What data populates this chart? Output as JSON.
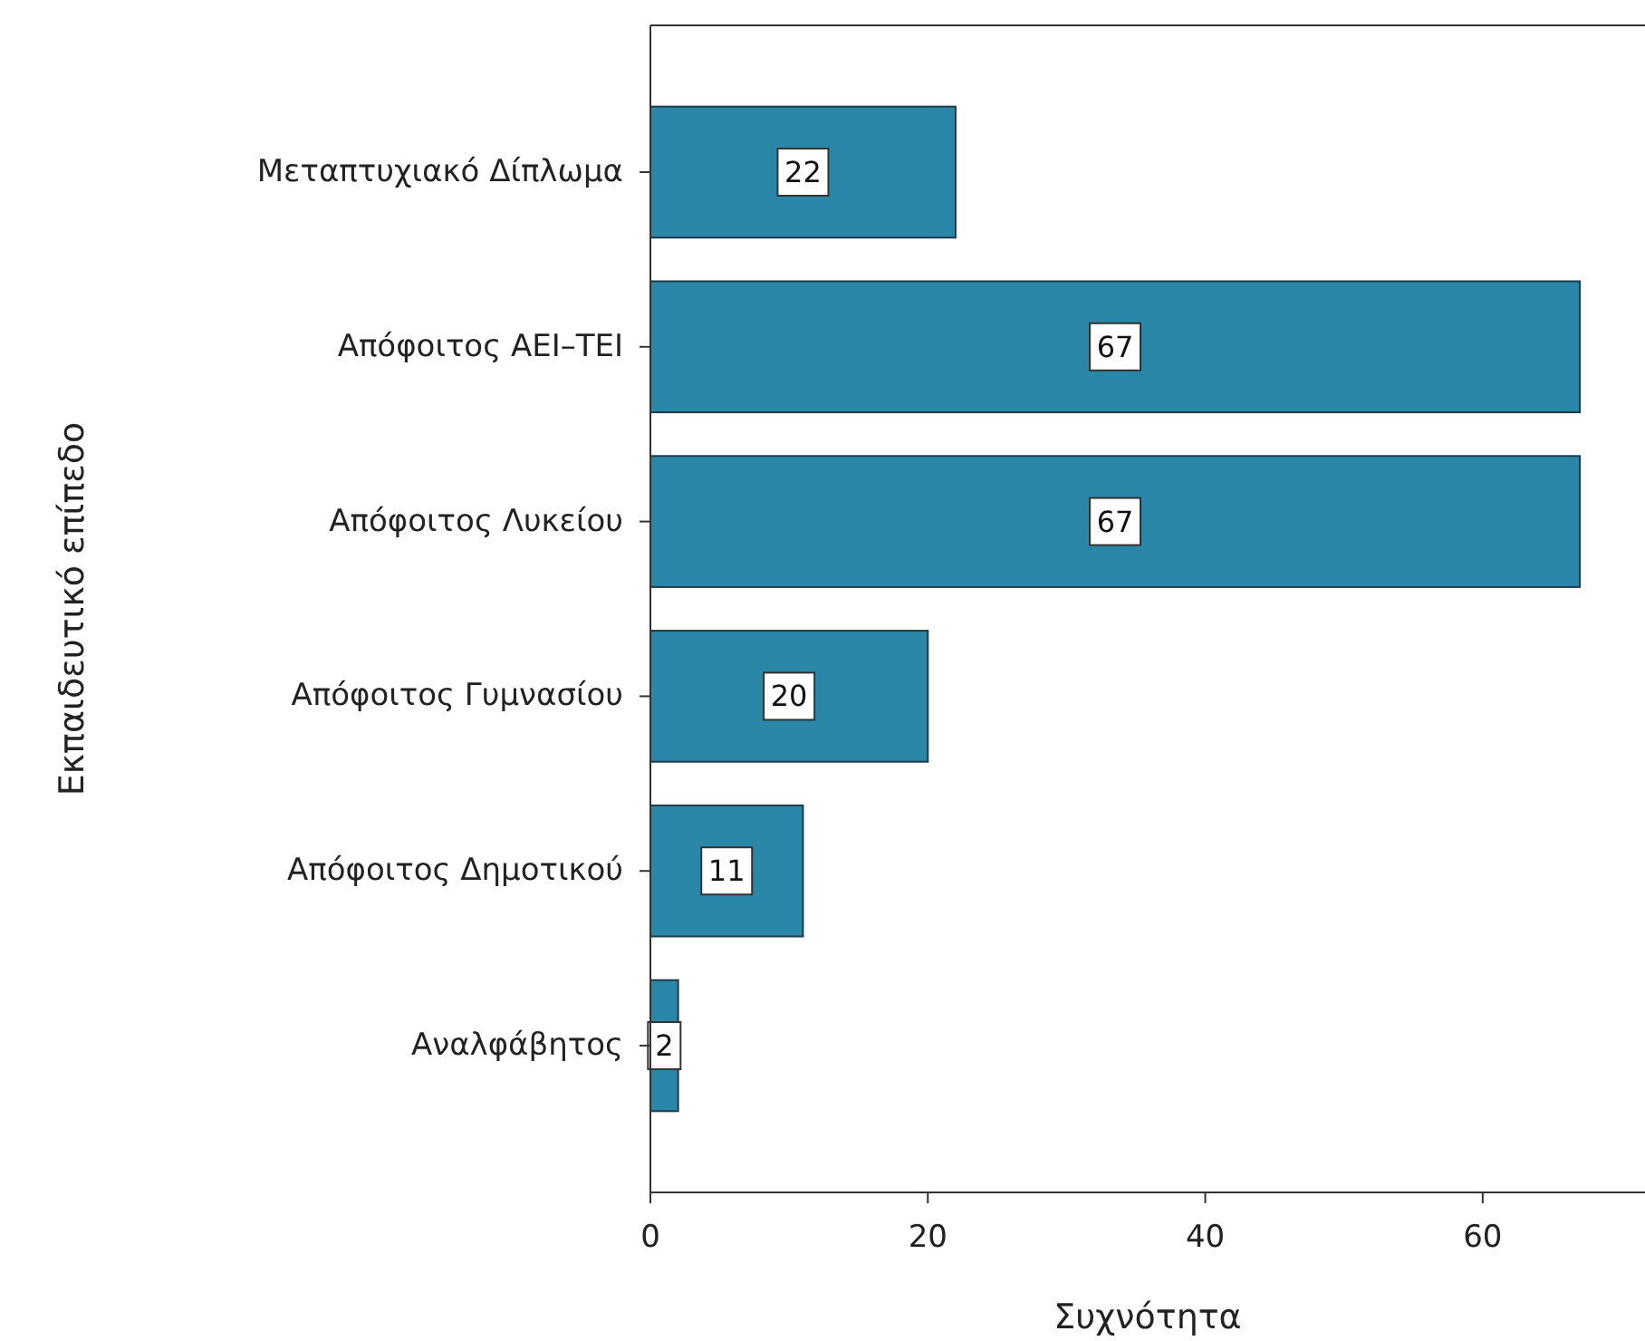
{
  "chart_data": {
    "type": "bar",
    "orientation": "horizontal",
    "xlabel": "Συχνότητα",
    "ylabel": "Εκπαιδευτικό επίπεδο",
    "categories": [
      "Μεταπτυχιακό Δίπλωμα",
      "Απόφοιτος ΑΕΙ–ΤΕΙ",
      "Απόφοιτος Λυκείου",
      "Απόφοιτος Γυμνασίου",
      "Απόφοιτος Δημοτικού",
      "Αναλφάβητος"
    ],
    "values": [
      22,
      67,
      67,
      20,
      11,
      2
    ],
    "color": "#2a87a8",
    "xlim": [
      0,
      71.7
    ],
    "xticks": [
      0,
      20,
      40,
      60
    ],
    "data_labels": true
  }
}
